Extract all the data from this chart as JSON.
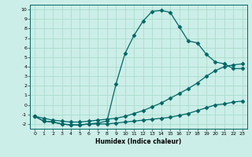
{
  "xlabel": "Humidex (Indice chaleur)",
  "background_color": "#cceee8",
  "line_color": "#006666",
  "grid_color": "#aadddd",
  "xlim": [
    -0.5,
    23.5
  ],
  "ylim": [
    -2.5,
    10.5
  ],
  "xticks": [
    0,
    1,
    2,
    3,
    4,
    5,
    6,
    7,
    8,
    9,
    10,
    11,
    12,
    13,
    14,
    15,
    16,
    17,
    18,
    19,
    20,
    21,
    22,
    23
  ],
  "yticks": [
    -2,
    -1,
    0,
    1,
    2,
    3,
    4,
    5,
    6,
    7,
    8,
    9,
    10
  ],
  "line1_x": [
    0,
    1,
    2,
    3,
    4,
    5,
    6,
    7,
    8,
    9,
    10,
    11,
    12,
    13,
    14,
    15,
    16,
    17,
    18,
    19,
    20,
    21,
    22,
    23
  ],
  "line1_y": [
    -1.2,
    -1.7,
    -1.8,
    -2.0,
    -2.1,
    -2.1,
    -2.0,
    -2.0,
    -2.0,
    -1.9,
    -1.8,
    -1.7,
    -1.6,
    -1.5,
    -1.4,
    -1.3,
    -1.1,
    -0.9,
    -0.6,
    -0.3,
    0.0,
    0.1,
    0.3,
    0.4
  ],
  "line2_x": [
    0,
    1,
    2,
    3,
    4,
    5,
    6,
    7,
    8,
    9,
    10,
    11,
    12,
    13,
    14,
    15,
    16,
    17,
    18,
    19,
    20,
    21,
    22,
    23
  ],
  "line2_y": [
    -1.2,
    -1.7,
    -1.8,
    -2.0,
    -2.1,
    -2.1,
    -2.0,
    -1.9,
    -1.7,
    2.2,
    5.4,
    7.3,
    8.8,
    9.8,
    9.9,
    9.7,
    8.2,
    6.7,
    6.5,
    5.3,
    4.5,
    4.3,
    3.8,
    3.8
  ],
  "line3_x": [
    0,
    1,
    2,
    3,
    4,
    5,
    6,
    7,
    8,
    9,
    10,
    11,
    12,
    13,
    14,
    15,
    16,
    17,
    18,
    19,
    20,
    21,
    22,
    23
  ],
  "line3_y": [
    -1.2,
    -1.4,
    -1.6,
    -1.7,
    -1.8,
    -1.8,
    -1.7,
    -1.6,
    -1.5,
    -1.4,
    -1.2,
    -0.9,
    -0.6,
    -0.2,
    0.2,
    0.7,
    1.2,
    1.7,
    2.3,
    3.0,
    3.6,
    4.0,
    4.2,
    4.3
  ],
  "marker_x2": [
    0,
    1,
    2,
    3,
    4,
    5,
    6,
    7,
    8,
    9,
    10,
    11,
    12,
    13,
    14,
    15,
    16,
    17,
    18,
    19,
    20,
    21,
    22,
    23
  ],
  "marker_x3": [
    0,
    1,
    2,
    3,
    4,
    5,
    6,
    7,
    8,
    9,
    10,
    11,
    12,
    13,
    14,
    15,
    16,
    17,
    18,
    19,
    20,
    21,
    22,
    23
  ]
}
